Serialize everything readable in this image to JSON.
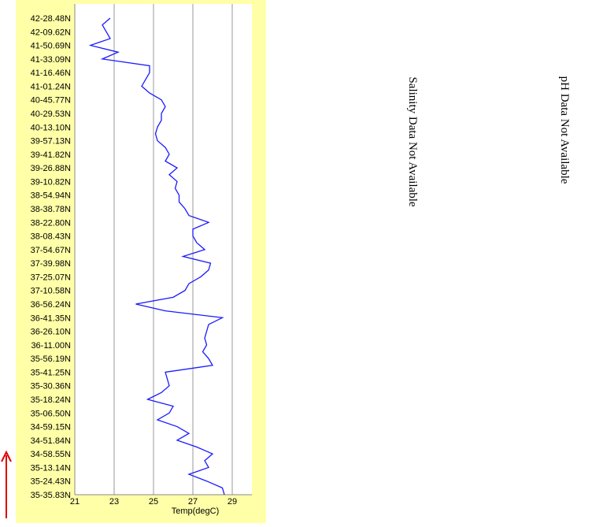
{
  "chart_data": {
    "type": "line",
    "xlabel": "Temp(degC)",
    "xlim": [
      21,
      30
    ],
    "xticks": [
      21,
      23,
      25,
      27,
      29
    ],
    "grid": true,
    "color": "#1a1aff",
    "categories": [
      "42-28.48N",
      null,
      "42-09.62N",
      null,
      "41-50.69N",
      null,
      "41-33.09N",
      null,
      "41-16.46N",
      null,
      "41-01.24N",
      null,
      "40-45.77N",
      null,
      "40-29.53N",
      null,
      "40-13.10N",
      null,
      "39-57.13N",
      null,
      "39-41.82N",
      null,
      "39-26.88N",
      null,
      "39-10.82N",
      null,
      "38-54.94N",
      null,
      "38-38.78N",
      null,
      "38-22.80N",
      null,
      "38-08.43N",
      null,
      "37-54.67N",
      null,
      "37-39.98N",
      null,
      "37-25.07N",
      null,
      "37-10.58N",
      null,
      "36-56.24N",
      null,
      "36-41.35N",
      null,
      "36-26.10N",
      null,
      "36-11.00N",
      null,
      "35-56.19N",
      null,
      "35-41.25N",
      null,
      "35-30.36N",
      null,
      "35-18.24N",
      null,
      "35-06.50N",
      null,
      "34-59.15N",
      null,
      "34-51.84N",
      null,
      "34-58.55N",
      null,
      "35-13.14N",
      null,
      "35-24.43N",
      null,
      "35-35.83N"
    ],
    "values": [
      22.8,
      22.4,
      22.6,
      22.8,
      21.8,
      23.2,
      22.4,
      24.8,
      24.8,
      24.6,
      24.4,
      24.8,
      25.4,
      25.6,
      25.4,
      25.4,
      25.2,
      25.1,
      25.2,
      25.6,
      25.8,
      25.6,
      26.2,
      25.8,
      26.2,
      26.1,
      26.3,
      26.3,
      26.6,
      26.8,
      27.8,
      27,
      27,
      27.2,
      27.6,
      26.5,
      27.9,
      27.8,
      27.4,
      26.8,
      26.6,
      26,
      24.1,
      25.6,
      28.5,
      27.8,
      27.7,
      27.6,
      27.7,
      27.5,
      27.8,
      28,
      25.6,
      25.7,
      25.8,
      25.4,
      24.7,
      26,
      25.8,
      25.2,
      26.2,
      26.8,
      26.2,
      27.2,
      28,
      27.6,
      27.8,
      26.8,
      27.7,
      28.5,
      28.6
    ]
  },
  "annotations": [
    "Salinity Data Not Available",
    "pH Data Not Available"
  ]
}
